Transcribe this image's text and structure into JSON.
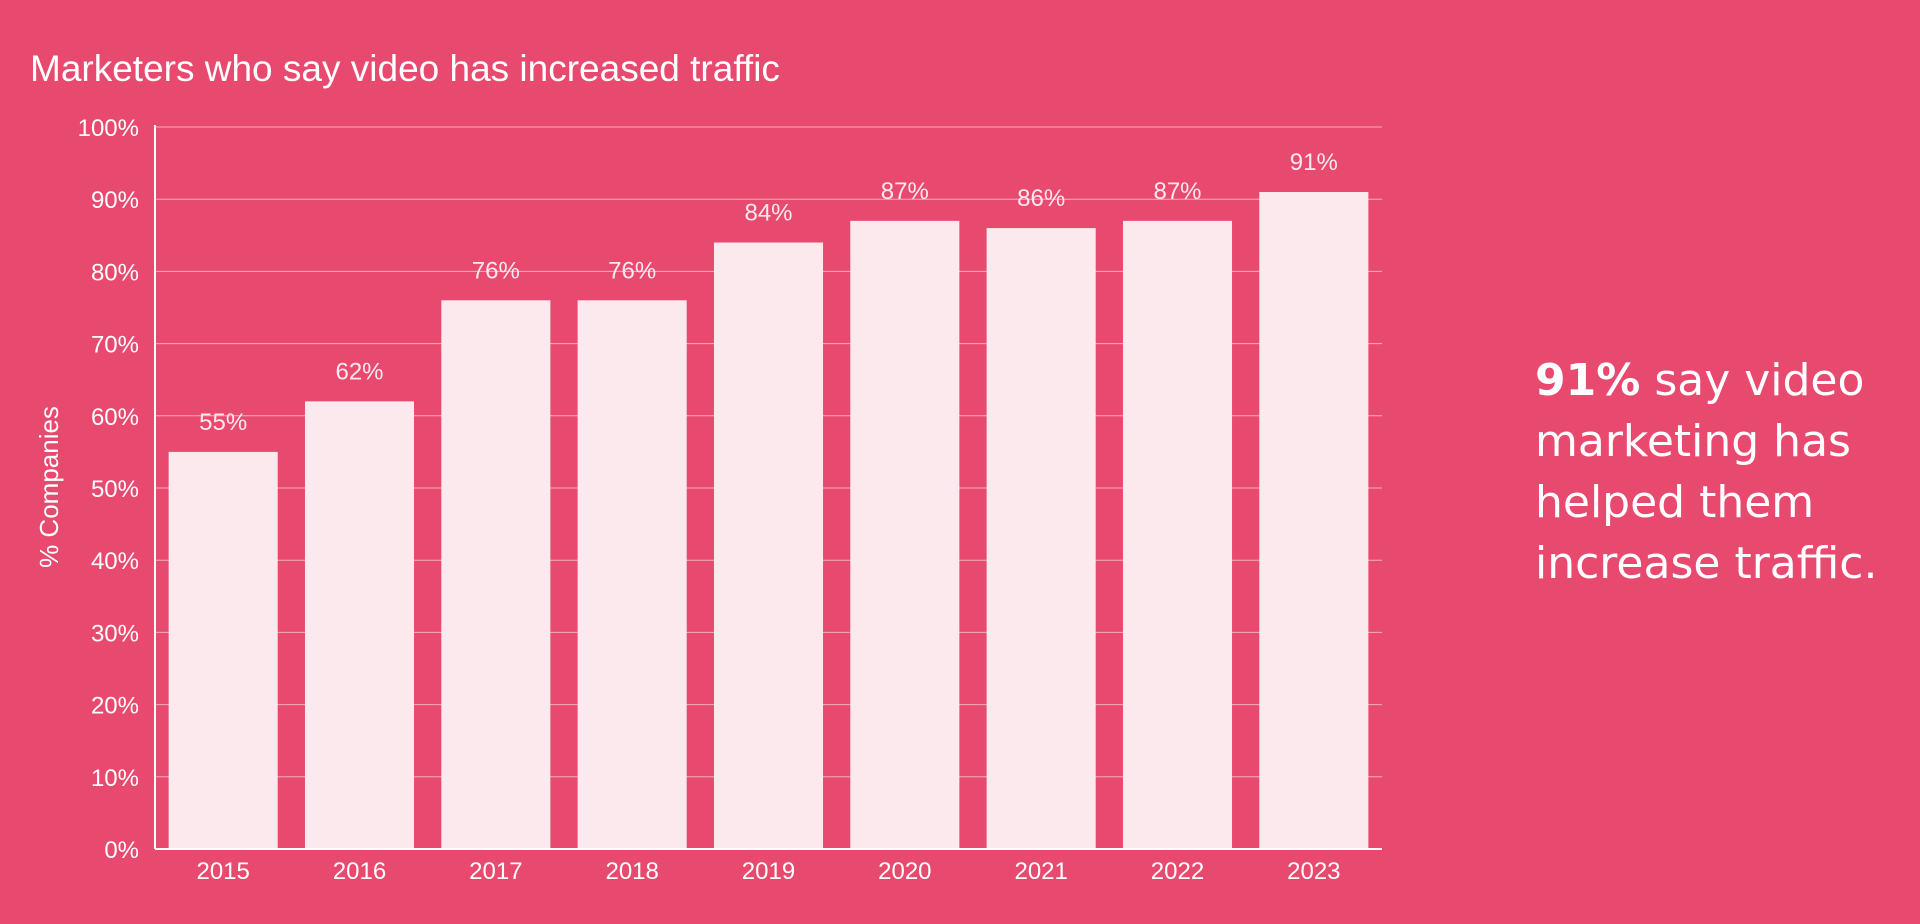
{
  "background_color": "#e8496f",
  "bar_color": "#fbe9ee",
  "chart_data": {
    "type": "bar",
    "title": "Marketers who say video has increased traffic",
    "ylabel": "% Companies",
    "xlabel": "",
    "categories": [
      "2015",
      "2016",
      "2017",
      "2018",
      "2019",
      "2020",
      "2021",
      "2022",
      "2023"
    ],
    "values": [
      55,
      62,
      76,
      76,
      84,
      87,
      86,
      87,
      91
    ],
    "data_labels": [
      "55%",
      "62%",
      "76%",
      "76%",
      "84%",
      "87%",
      "86%",
      "87%",
      "91%"
    ],
    "ylim": [
      0,
      100
    ],
    "yticks": [
      0,
      10,
      20,
      30,
      40,
      50,
      60,
      70,
      80,
      90,
      100
    ],
    "ytick_labels": [
      "0%",
      "10%",
      "20%",
      "30%",
      "40%",
      "50%",
      "60%",
      "70%",
      "80%",
      "90%",
      "100%"
    ],
    "grid": true
  },
  "callout": {
    "highlight": "91%",
    "text": " say video marketing has helped them increase traffic."
  }
}
